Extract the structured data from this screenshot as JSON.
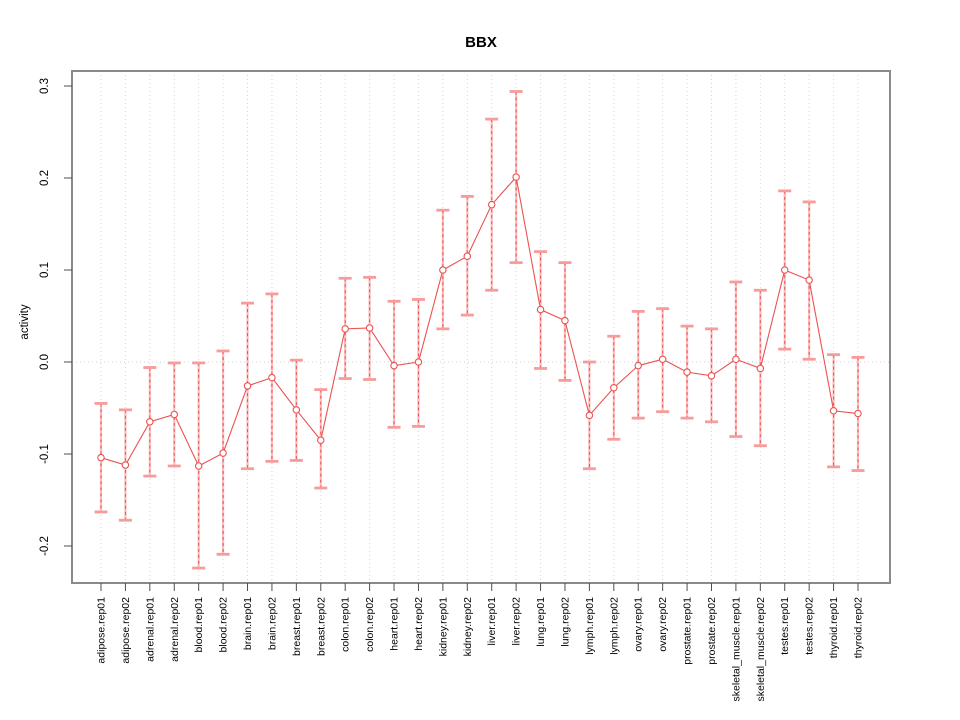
{
  "chart_data": {
    "type": "scatter",
    "title": "BBX",
    "xlabel": "",
    "ylabel": "activity",
    "ylim": [
      -0.24,
      0.316
    ],
    "yticks": [
      {
        "v": -0.2,
        "label": "-0.2"
      },
      {
        "v": -0.1,
        "label": "-0.1"
      },
      {
        "v": 0.0,
        "label": "0.0"
      },
      {
        "v": 0.1,
        "label": "0.1"
      },
      {
        "v": 0.2,
        "label": "0.2"
      },
      {
        "v": 0.3,
        "label": "0.3"
      }
    ],
    "grid": {
      "vertical_dotted": true,
      "zero_line_dotted": true,
      "horizontal": false
    },
    "legend_position": "none",
    "errorbars": true,
    "categories": [
      "adipose.rep01",
      "adipose.rep02",
      "adrenal.rep01",
      "adrenal.rep02",
      "blood.rep01",
      "blood.rep02",
      "brain.rep01",
      "brain.rep02",
      "breast.rep01",
      "breast.rep02",
      "colon.rep01",
      "colon.rep02",
      "heart.rep01",
      "heart.rep02",
      "kidney.rep01",
      "kidney.rep02",
      "liver.rep01",
      "liver.rep02",
      "lung.rep01",
      "lung.rep02",
      "lymph.rep01",
      "lymph.rep02",
      "ovary.rep01",
      "ovary.rep02",
      "prostate.rep01",
      "prostate.rep02",
      "skeletal_muscle.rep01",
      "skeletal_muscle.rep02",
      "testes.rep01",
      "testes.rep02",
      "thyroid.rep01",
      "thyroid.rep02"
    ],
    "series": [
      {
        "name": "activity",
        "values": [
          -0.104,
          -0.112,
          -0.065,
          -0.057,
          -0.113,
          -0.099,
          -0.026,
          -0.017,
          -0.052,
          -0.085,
          0.036,
          0.037,
          -0.004,
          0.0,
          0.1,
          0.115,
          0.171,
          0.201,
          0.057,
          0.045,
          -0.058,
          -0.028,
          -0.004,
          0.003,
          -0.011,
          -0.015,
          0.003,
          -0.007,
          0.1,
          0.089,
          -0.053,
          -0.056
        ],
        "lower": [
          -0.163,
          -0.172,
          -0.124,
          -0.113,
          -0.224,
          -0.209,
          -0.116,
          -0.108,
          -0.107,
          -0.137,
          -0.018,
          -0.019,
          -0.071,
          -0.07,
          0.036,
          0.051,
          0.078,
          0.108,
          -0.007,
          -0.02,
          -0.116,
          -0.084,
          -0.061,
          -0.054,
          -0.061,
          -0.065,
          -0.081,
          -0.091,
          0.014,
          0.003,
          -0.114,
          -0.118
        ],
        "upper": [
          -0.045,
          -0.052,
          -0.006,
          -0.001,
          -0.001,
          0.012,
          0.064,
          0.074,
          0.002,
          -0.03,
          0.091,
          0.092,
          0.066,
          0.068,
          0.165,
          0.18,
          0.264,
          0.294,
          0.12,
          0.108,
          0.0,
          0.028,
          0.055,
          0.058,
          0.039,
          0.036,
          0.087,
          0.078,
          0.186,
          0.174,
          0.008,
          0.005
        ]
      }
    ]
  },
  "colors": {
    "series_main": "#ec5151",
    "error_cap": "#f89b9b",
    "error_vertical_light": "#fbbcbc",
    "marker_fill": "#ffffff",
    "grid": "#d4d4d4",
    "zero_line": "#cfcfcf",
    "frame": "#8a8a8a",
    "tick": "#4d4d4d",
    "text": "#000000"
  }
}
